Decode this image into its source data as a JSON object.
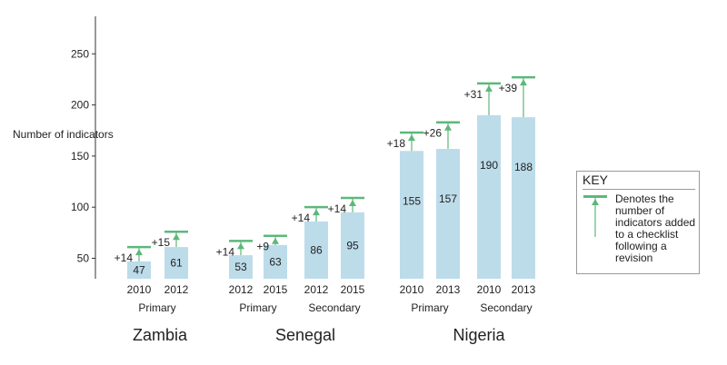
{
  "chart_data": {
    "type": "bar",
    "ylabel": "Number of indicators",
    "yticks": [
      50,
      100,
      150,
      200,
      250
    ],
    "ylim": [
      30,
      255
    ],
    "bars": [
      {
        "country": "Zambia",
        "level": "Primary",
        "year": "2010",
        "value": 47,
        "added": 14
      },
      {
        "country": "Zambia",
        "level": "Primary",
        "year": "2012",
        "value": 61,
        "added": 15
      },
      {
        "country": "Senegal",
        "level": "Primary",
        "year": "2012",
        "value": 53,
        "added": 14
      },
      {
        "country": "Senegal",
        "level": "Primary",
        "year": "2015",
        "value": 63,
        "added": 9
      },
      {
        "country": "Senegal",
        "level": "Secondary",
        "year": "2012",
        "value": 86,
        "added": 14
      },
      {
        "country": "Senegal",
        "level": "Secondary",
        "year": "2015",
        "value": 95,
        "added": 14
      },
      {
        "country": "Nigeria",
        "level": "Primary",
        "year": "2010",
        "value": 155,
        "added": 18
      },
      {
        "country": "Nigeria",
        "level": "Primary",
        "year": "2013",
        "value": 157,
        "added": 26
      },
      {
        "country": "Nigeria",
        "level": "Secondary",
        "year": "2010",
        "value": 190,
        "added": 31
      },
      {
        "country": "Nigeria",
        "level": "Secondary",
        "year": "2013",
        "value": 188,
        "added": 39
      }
    ],
    "level_labels": [
      {
        "text": "Primary",
        "country": "Zambia"
      },
      {
        "text": "Primary",
        "country": "Senegal"
      },
      {
        "text": "Secondary",
        "country": "Senegal"
      },
      {
        "text": "Primary",
        "country": "Nigeria"
      },
      {
        "text": "Secondary",
        "country": "Nigeria"
      }
    ],
    "countries": [
      "Zambia",
      "Senegal",
      "Nigeria"
    ],
    "colors": {
      "bar": "#bcdcea",
      "marker": "#5cb87a",
      "axis": "#333333"
    }
  },
  "key": {
    "title": "KEY",
    "text": "Denotes the number of indicators added to a checklist following a revision"
  }
}
